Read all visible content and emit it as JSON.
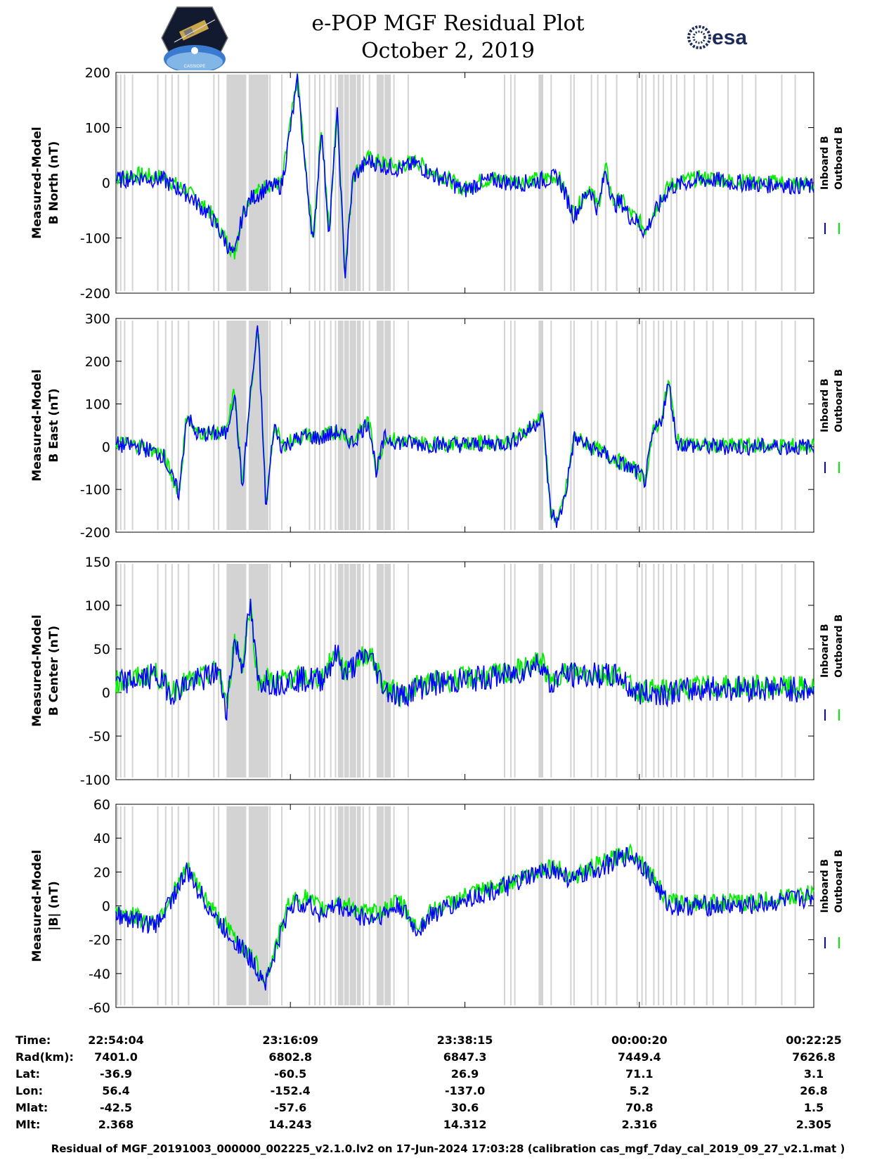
{
  "header": {
    "title_line1": "e-POP MGF Residual Plot",
    "title_line2": "October 2, 2019",
    "left_logo_text": "CASSIOPE",
    "right_logo_text": "esa"
  },
  "colors": {
    "inboard": "#0000ff",
    "outboard": "#00ee00",
    "gap_band": "#d3d3d3"
  },
  "chart_data": [
    {
      "type": "line",
      "ylabel_line1": "Measured-Model",
      "ylabel_line2": "B North (nT)",
      "ylim": [
        -200,
        200
      ],
      "yticks": [
        "-200",
        "-100",
        "0",
        "100",
        "200"
      ],
      "legend": [
        "Inboard B",
        "Outboard B"
      ],
      "x": [
        0,
        3,
        6,
        9,
        12,
        15,
        16,
        17,
        18,
        19,
        21,
        23,
        24,
        25,
        26,
        27,
        28,
        29,
        30,
        32,
        34,
        36,
        38,
        40,
        42,
        44,
        46,
        48,
        50,
        52,
        54,
        56,
        58,
        60,
        61,
        62,
        63,
        64,
        65,
        66,
        67,
        68,
        70,
        72,
        74,
        76,
        78,
        80,
        82,
        84,
        85,
        86,
        87,
        88
      ],
      "series": [
        {
          "name": "Inboard B",
          "values": [
            5,
            10,
            5,
            -20,
            -60,
            -135,
            -60,
            -30,
            -20,
            -10,
            -5,
            185,
            20,
            -110,
            100,
            -95,
            130,
            -170,
            10,
            40,
            30,
            25,
            35,
            15,
            5,
            -15,
            0,
            5,
            0,
            0,
            5,
            10,
            -60,
            -10,
            -50,
            25,
            -40,
            -35,
            -60,
            -70,
            -90,
            -60,
            -10,
            0,
            5,
            5,
            0,
            0,
            -5,
            0,
            -5,
            -5,
            -5,
            -8
          ]
        },
        {
          "name": "Outboard B",
          "values": [
            10,
            15,
            10,
            -15,
            -55,
            -130,
            -55,
            -25,
            -15,
            -5,
            0,
            195,
            25,
            -105,
            105,
            -90,
            135,
            -165,
            15,
            45,
            35,
            30,
            40,
            20,
            8,
            -12,
            3,
            8,
            3,
            3,
            8,
            12,
            -55,
            -5,
            -45,
            28,
            -37,
            -30,
            -55,
            -65,
            -85,
            -55,
            -5,
            5,
            8,
            8,
            3,
            3,
            -2,
            3,
            -2,
            -2,
            -2,
            -5
          ]
        }
      ]
    },
    {
      "type": "line",
      "ylabel_line1": "Measured-Model",
      "ylabel_line2": "B East (nT)",
      "ylim": [
        -200,
        300
      ],
      "yticks": [
        "-200",
        "-100",
        "0",
        "100",
        "200",
        "300"
      ],
      "legend": [
        "Inboard B",
        "Outboard B"
      ],
      "x": [
        0,
        3,
        6,
        7,
        8,
        9,
        10,
        12,
        14,
        15,
        16,
        17,
        18,
        19,
        20,
        21,
        22,
        24,
        26,
        28,
        30,
        32,
        33,
        34,
        35,
        36,
        40,
        45,
        50,
        53,
        54,
        55,
        56,
        57,
        58,
        60,
        62,
        64,
        66,
        67,
        68,
        69,
        70,
        71,
        72,
        74,
        80,
        88
      ],
      "series": [
        {
          "name": "Inboard B",
          "values": [
            5,
            0,
            -20,
            -70,
            -110,
            80,
            30,
            30,
            30,
            130,
            -100,
            120,
            280,
            -150,
            50,
            0,
            10,
            25,
            20,
            35,
            10,
            60,
            -60,
            20,
            15,
            10,
            5,
            5,
            10,
            50,
            80,
            -150,
            -180,
            -100,
            20,
            0,
            -20,
            -40,
            -60,
            -80,
            30,
            60,
            150,
            10,
            5,
            0,
            0,
            0
          ]
        },
        {
          "name": "Outboard B",
          "values": [
            10,
            3,
            -17,
            -67,
            -107,
            83,
            33,
            33,
            33,
            133,
            -97,
            123,
            283,
            -147,
            53,
            3,
            13,
            28,
            23,
            38,
            13,
            63,
            -57,
            23,
            18,
            13,
            8,
            8,
            13,
            53,
            83,
            -147,
            -177,
            -97,
            23,
            3,
            -17,
            -37,
            -57,
            -77,
            33,
            63,
            153,
            13,
            8,
            3,
            3,
            3
          ]
        }
      ]
    },
    {
      "type": "line",
      "ylabel_line1": "Measured-Model",
      "ylabel_line2": "B Center (nT)",
      "ylim": [
        -100,
        150
      ],
      "yticks": [
        "-100",
        "-50",
        "0",
        "50",
        "100",
        "150"
      ],
      "legend": [
        "Inboard B",
        "Outboard B"
      ],
      "x": [
        0,
        3,
        5,
        7,
        9,
        11,
        13,
        14,
        15,
        16,
        17,
        18,
        19,
        20,
        22,
        26,
        28,
        29,
        30,
        32,
        34,
        35,
        36,
        38,
        40,
        45,
        50,
        54,
        55,
        56,
        60,
        64,
        65,
        66,
        70,
        75,
        80,
        88
      ],
      "series": [
        {
          "name": "Inboard B",
          "values": [
            10,
            15,
            20,
            0,
            10,
            15,
            25,
            -20,
            60,
            30,
            100,
            10,
            15,
            10,
            15,
            15,
            45,
            20,
            30,
            45,
            5,
            0,
            -5,
            5,
            10,
            15,
            20,
            35,
            5,
            20,
            20,
            18,
            5,
            0,
            0,
            5,
            5,
            3
          ]
        },
        {
          "name": "Outboard B",
          "values": [
            12,
            17,
            22,
            2,
            12,
            17,
            27,
            -18,
            62,
            32,
            102,
            12,
            17,
            12,
            17,
            17,
            47,
            22,
            32,
            47,
            7,
            2,
            -3,
            7,
            12,
            17,
            22,
            37,
            7,
            22,
            22,
            20,
            7,
            2,
            2,
            7,
            7,
            5
          ]
        }
      ]
    },
    {
      "type": "line",
      "ylabel_line1": "Measured-Model",
      "ylabel_line2": "|B| (nT)",
      "ylim": [
        -60,
        60
      ],
      "yticks": [
        "-60",
        "-40",
        "-20",
        "0",
        "20",
        "40",
        "60"
      ],
      "legend": [
        "Inboard B",
        "Outboard B"
      ],
      "x": [
        0,
        5,
        9,
        13,
        16,
        19,
        22,
        24,
        26,
        28,
        32,
        34,
        36,
        38,
        40,
        45,
        50,
        55,
        58,
        60,
        65,
        66,
        68,
        70,
        80,
        88
      ],
      "series": [
        {
          "name": "Inboard B",
          "values": [
            -5,
            -12,
            20,
            -10,
            -25,
            -45,
            0,
            2,
            -5,
            0,
            -8,
            -5,
            0,
            -15,
            -5,
            5,
            12,
            22,
            15,
            20,
            30,
            28,
            15,
            0,
            0,
            5
          ]
        },
        {
          "name": "Outboard B",
          "values": [
            -3,
            -10,
            22,
            -8,
            -23,
            -43,
            3,
            5,
            -2,
            3,
            -5,
            -2,
            3,
            -13,
            -3,
            7,
            14,
            24,
            17,
            22,
            32,
            30,
            17,
            2,
            2,
            7
          ]
        }
      ]
    }
  ],
  "gap_bands_minutes": [
    [
      14,
      16.5
    ],
    [
      16.8,
      19.3
    ],
    [
      28.1,
      28.8
    ],
    [
      28.9,
      29.5
    ],
    [
      29.6,
      30.4
    ],
    [
      30.5,
      31.0
    ],
    [
      33,
      33.9
    ],
    [
      34.0,
      34.8
    ],
    [
      53.5,
      54.1
    ]
  ],
  "gap_lines_minutes": [
    0.2,
    0.6,
    1.1,
    2.1,
    5.3,
    6.3,
    7.1,
    7.9,
    9.2,
    12.4,
    13.0,
    19.5,
    21.0,
    24.5,
    25.2,
    25.8,
    26.4,
    27.2,
    27.8,
    31.3,
    32.1,
    35.2,
    37.0,
    49.2,
    50.0,
    50.5,
    55.1,
    57.6,
    58.0,
    60.2,
    61.0,
    62.0,
    63.4,
    66.0,
    66.6,
    67.1,
    68.1,
    68.7,
    69.3,
    70.3,
    71.0,
    72.0,
    73.2,
    74.8,
    75.6,
    77.5,
    79.3,
    81.0,
    84.3,
    86.0
  ],
  "x_axis": {
    "range_minutes": [
      0,
      88.35
    ],
    "tick_minutes": [
      0,
      22.083,
      44.183,
      66.267,
      88.35
    ]
  },
  "table": {
    "rows": [
      {
        "label": "Time:",
        "values": [
          "22:54:04",
          "23:16:09",
          "23:38:15",
          "00:00:20",
          "00:22:25"
        ]
      },
      {
        "label": "Rad(km):",
        "values": [
          "7401.0",
          "6802.8",
          "6847.3",
          "7449.4",
          "7626.8"
        ]
      },
      {
        "label": "Lat:",
        "values": [
          "-36.9",
          "-60.5",
          "26.9",
          "71.1",
          "3.1"
        ]
      },
      {
        "label": "Lon:",
        "values": [
          "56.4",
          "-152.4",
          "-137.0",
          "5.2",
          "26.8"
        ]
      },
      {
        "label": "Mlat:",
        "values": [
          "-42.5",
          "-57.6",
          "30.6",
          "70.8",
          "1.5"
        ]
      },
      {
        "label": "Mlt:",
        "values": [
          "2.368",
          "14.243",
          "14.312",
          "2.316",
          "2.305"
        ]
      }
    ]
  },
  "footer": "Residual of MGF_20191003_000000_002225_v2.1.0.lv2 on 17-Jun-2024 17:03:28 (calibration cas_mgf_7day_cal_2019_09_27_v2.1.mat )"
}
